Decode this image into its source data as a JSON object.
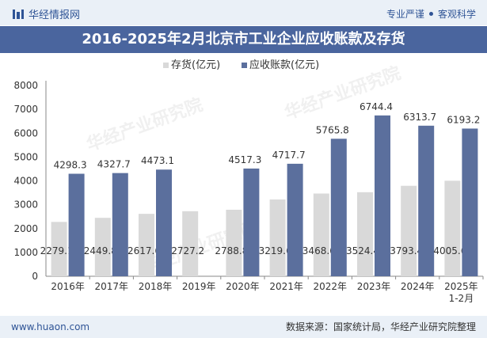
{
  "header": {
    "brand": "华经情报网",
    "slogan_left": "专业严谨",
    "slogan_right": "客观科学"
  },
  "footer": {
    "url": "www.huaon.com",
    "source": "数据来源：国家统计局，华经产业研究院整理"
  },
  "watermark": "华经产业研究院",
  "colors": {
    "series1": "#d9d9d9",
    "series2": "#5b6f9d",
    "title_bg": "#4a659e",
    "accent": "#2f5496"
  },
  "chart_data": {
    "type": "bar",
    "title": "2016-2025年2月北京市工业企业应收账款及存货",
    "categories": [
      "2016年",
      "2017年",
      "2018年",
      "2019年",
      "2020年",
      "2021年",
      "2022年",
      "2023年",
      "2024年",
      "2025年\n1-2月"
    ],
    "series": [
      {
        "name": "存货(亿元)",
        "values": [
          2279.1,
          2449.8,
          2617.6,
          2727.2,
          2788.8,
          3219.6,
          3468.6,
          3524.4,
          3793.4,
          4005.6
        ]
      },
      {
        "name": "应收账款(亿元)",
        "values": [
          4298.3,
          4327.7,
          4473.1,
          null,
          4517.3,
          4717.7,
          5765.8,
          6744.4,
          6313.7,
          6193.2
        ]
      }
    ],
    "ylim": [
      0,
      8000
    ],
    "yticks": [
      0,
      1000,
      2000,
      3000,
      4000,
      5000,
      6000,
      7000,
      8000
    ],
    "legend": "top-center"
  }
}
